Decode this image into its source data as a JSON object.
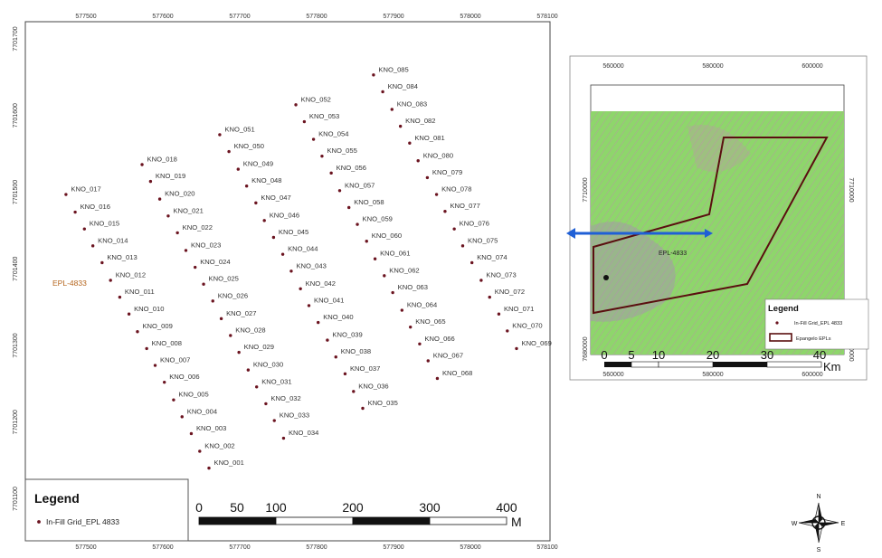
{
  "main_map": {
    "x_ticks": [
      "577500",
      "577600",
      "577700",
      "577800",
      "577900",
      "578000",
      "578100"
    ],
    "y_ticks": [
      "7701700",
      "7701600",
      "7701500",
      "7701400",
      "7701300",
      "7701200",
      "7701100"
    ],
    "area_label": "EPL-4833",
    "point_color": "#6b1420",
    "points": [
      {
        "id": "KNO_001",
        "e": 577660,
        "n": 7701140
      },
      {
        "id": "KNO_002",
        "e": 577648,
        "n": 7701162
      },
      {
        "id": "KNO_003",
        "e": 577637,
        "n": 7701185
      },
      {
        "id": "KNO_004",
        "e": 577625,
        "n": 7701207
      },
      {
        "id": "KNO_005",
        "e": 577614,
        "n": 7701229
      },
      {
        "id": "KNO_006",
        "e": 577602,
        "n": 7701252
      },
      {
        "id": "KNO_007",
        "e": 577590,
        "n": 7701274
      },
      {
        "id": "KNO_008",
        "e": 577579,
        "n": 7701296
      },
      {
        "id": "KNO_009",
        "e": 577567,
        "n": 7701318
      },
      {
        "id": "KNO_010",
        "e": 577556,
        "n": 7701341
      },
      {
        "id": "KNO_011",
        "e": 577544,
        "n": 7701363
      },
      {
        "id": "KNO_012",
        "e": 577532,
        "n": 7701385
      },
      {
        "id": "KNO_013",
        "e": 577521,
        "n": 7701408
      },
      {
        "id": "KNO_014",
        "e": 577509,
        "n": 7701430
      },
      {
        "id": "KNO_015",
        "e": 577498,
        "n": 7701452
      },
      {
        "id": "KNO_016",
        "e": 577486,
        "n": 7701474
      },
      {
        "id": "KNO_017",
        "e": 577474,
        "n": 7701497
      },
      {
        "id": "KNO_018",
        "e": 577573,
        "n": 7701536
      },
      {
        "id": "KNO_019",
        "e": 577584,
        "n": 7701514
      },
      {
        "id": "KNO_020",
        "e": 577596,
        "n": 7701491
      },
      {
        "id": "KNO_021",
        "e": 577607,
        "n": 7701469
      },
      {
        "id": "KNO_022",
        "e": 577619,
        "n": 7701447
      },
      {
        "id": "KNO_023",
        "e": 577630,
        "n": 7701424
      },
      {
        "id": "KNO_024",
        "e": 577642,
        "n": 7701402
      },
      {
        "id": "KNO_025",
        "e": 577653,
        "n": 7701380
      },
      {
        "id": "KNO_026",
        "e": 577665,
        "n": 7701358
      },
      {
        "id": "KNO_027",
        "e": 577676,
        "n": 7701335
      },
      {
        "id": "KNO_028",
        "e": 577688,
        "n": 7701313
      },
      {
        "id": "KNO_029",
        "e": 577699,
        "n": 7701291
      },
      {
        "id": "KNO_030",
        "e": 577711,
        "n": 7701268
      },
      {
        "id": "KNO_031",
        "e": 577722,
        "n": 7701246
      },
      {
        "id": "KNO_032",
        "e": 577734,
        "n": 7701224
      },
      {
        "id": "KNO_033",
        "e": 577745,
        "n": 7701202
      },
      {
        "id": "KNO_034",
        "e": 577757,
        "n": 7701179
      },
      {
        "id": "KNO_035",
        "e": 577860,
        "n": 7701218
      },
      {
        "id": "KNO_036",
        "e": 577848,
        "n": 7701240
      },
      {
        "id": "KNO_037",
        "e": 577837,
        "n": 7701263
      },
      {
        "id": "KNO_038",
        "e": 577825,
        "n": 7701285
      },
      {
        "id": "KNO_039",
        "e": 577814,
        "n": 7701307
      },
      {
        "id": "KNO_040",
        "e": 577802,
        "n": 7701330
      },
      {
        "id": "KNO_041",
        "e": 577790,
        "n": 7701352
      },
      {
        "id": "KNO_042",
        "e": 577779,
        "n": 7701374
      },
      {
        "id": "KNO_043",
        "e": 577767,
        "n": 7701397
      },
      {
        "id": "KNO_044",
        "e": 577756,
        "n": 7701419
      },
      {
        "id": "KNO_045",
        "e": 577744,
        "n": 7701441
      },
      {
        "id": "KNO_046",
        "e": 577732,
        "n": 7701463
      },
      {
        "id": "KNO_047",
        "e": 577721,
        "n": 7701486
      },
      {
        "id": "KNO_048",
        "e": 577709,
        "n": 7701508
      },
      {
        "id": "KNO_049",
        "e": 577698,
        "n": 7701530
      },
      {
        "id": "KNO_050",
        "e": 577686,
        "n": 7701553
      },
      {
        "id": "KNO_051",
        "e": 577674,
        "n": 7701575
      },
      {
        "id": "KNO_052",
        "e": 577773,
        "n": 7701614
      },
      {
        "id": "KNO_053",
        "e": 577784,
        "n": 7701592
      },
      {
        "id": "KNO_054",
        "e": 577796,
        "n": 7701569
      },
      {
        "id": "KNO_055",
        "e": 577807,
        "n": 7701547
      },
      {
        "id": "KNO_056",
        "e": 577819,
        "n": 7701525
      },
      {
        "id": "KNO_057",
        "e": 577830,
        "n": 7701502
      },
      {
        "id": "KNO_058",
        "e": 577842,
        "n": 7701480
      },
      {
        "id": "KNO_059",
        "e": 577853,
        "n": 7701458
      },
      {
        "id": "KNO_060",
        "e": 577865,
        "n": 7701436
      },
      {
        "id": "KNO_061",
        "e": 577876,
        "n": 7701413
      },
      {
        "id": "KNO_062",
        "e": 577888,
        "n": 7701391
      },
      {
        "id": "KNO_063",
        "e": 577899,
        "n": 7701369
      },
      {
        "id": "KNO_064",
        "e": 577911,
        "n": 7701346
      },
      {
        "id": "KNO_065",
        "e": 577922,
        "n": 7701324
      },
      {
        "id": "KNO_066",
        "e": 577934,
        "n": 7701302
      },
      {
        "id": "KNO_067",
        "e": 577945,
        "n": 7701280
      },
      {
        "id": "KNO_068",
        "e": 577957,
        "n": 7701257
      },
      {
        "id": "KNO_069",
        "e": 578060,
        "n": 7701296
      },
      {
        "id": "KNO_070",
        "e": 578048,
        "n": 7701319
      },
      {
        "id": "KNO_071",
        "e": 578037,
        "n": 7701341
      },
      {
        "id": "KNO_072",
        "e": 578025,
        "n": 7701363
      },
      {
        "id": "KNO_073",
        "e": 578014,
        "n": 7701385
      },
      {
        "id": "KNO_074",
        "e": 578002,
        "n": 7701408
      },
      {
        "id": "KNO_075",
        "e": 577990,
        "n": 7701430
      },
      {
        "id": "KNO_076",
        "e": 577979,
        "n": 7701452
      },
      {
        "id": "KNO_077",
        "e": 577967,
        "n": 7701475
      },
      {
        "id": "KNO_078",
        "e": 577956,
        "n": 7701497
      },
      {
        "id": "KNO_079",
        "e": 577944,
        "n": 7701519
      },
      {
        "id": "KNO_080",
        "e": 577932,
        "n": 7701541
      },
      {
        "id": "KNO_081",
        "e": 577921,
        "n": 7701564
      },
      {
        "id": "KNO_082",
        "e": 577909,
        "n": 7701586
      },
      {
        "id": "KNO_083",
        "e": 577898,
        "n": 7701608
      },
      {
        "id": "KNO_084",
        "e": 577886,
        "n": 7701631
      },
      {
        "id": "KNO_085",
        "e": 577874,
        "n": 7701653
      }
    ]
  },
  "legend": {
    "title": "Legend",
    "entry": "In-Fill Grid_EPL 4833"
  },
  "scale_bar": {
    "labels": [
      "0",
      "50",
      "100",
      "200",
      "300",
      "400"
    ],
    "unit": "M"
  },
  "inset": {
    "x_ticks": [
      "560000",
      "580000",
      "600000"
    ],
    "y_ticks": [
      "7710000",
      "7680000"
    ],
    "area_label": "EPL-4833",
    "legend_title": "Legend",
    "legend_entries": [
      "In-Fill Grid_EPL 4833",
      "Epangelo EPLs"
    ],
    "scale_labels": [
      "0",
      "5",
      "10",
      "20",
      "30",
      "40"
    ],
    "scale_unit": "Km",
    "colors": {
      "ground": "#8fd86a",
      "boundary": "#5a0f0f",
      "arrow": "#1f5fd6"
    }
  },
  "compass": {
    "n": "N",
    "s": "S",
    "e": "E",
    "w": "W"
  }
}
